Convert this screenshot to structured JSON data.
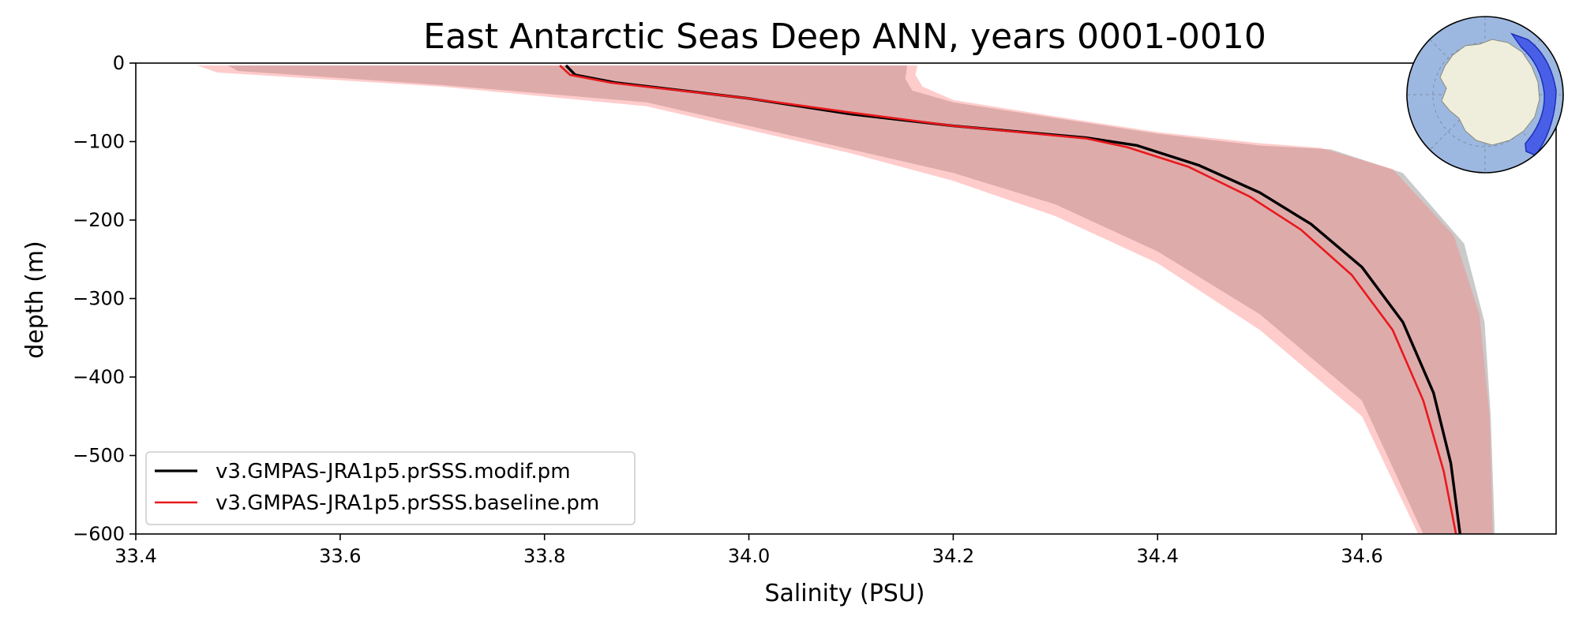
{
  "chart_data": {
    "type": "line",
    "title": "East Antarctic Seas Deep ANN, years 0001-0010",
    "xlabel": "Salinity (PSU)",
    "ylabel": "depth (m)",
    "xlim": [
      33.4,
      34.79
    ],
    "ylim": [
      -600,
      0
    ],
    "xticks": [
      33.4,
      33.6,
      33.8,
      34.0,
      34.2,
      34.4,
      34.6
    ],
    "xtick_labels": [
      "33.4",
      "33.6",
      "33.8",
      "34.0",
      "34.2",
      "34.4",
      "34.6"
    ],
    "yticks": [
      0,
      -100,
      -200,
      -300,
      -400,
      -500,
      -600
    ],
    "ytick_labels": [
      "0",
      "−100",
      "−200",
      "−300",
      "−400",
      "−500",
      "−600"
    ],
    "legend_location": "lower-left",
    "series": [
      {
        "name": "v3.GMPAS-JRA1p5.prSSS.modif.pm",
        "color": "#000000",
        "mean": [
          [
            33.821,
            -3
          ],
          [
            33.83,
            -15
          ],
          [
            33.87,
            -25
          ],
          [
            34.0,
            -45
          ],
          [
            34.1,
            -65
          ],
          [
            34.2,
            -80
          ],
          [
            34.33,
            -95
          ],
          [
            34.38,
            -105
          ],
          [
            34.44,
            -130
          ],
          [
            34.5,
            -165
          ],
          [
            34.55,
            -205
          ],
          [
            34.6,
            -260
          ],
          [
            34.64,
            -330
          ],
          [
            34.67,
            -420
          ],
          [
            34.687,
            -510
          ],
          [
            34.696,
            -600
          ]
        ],
        "lower": [
          [
            33.49,
            -3
          ],
          [
            33.5,
            -10
          ],
          [
            33.7,
            -28
          ],
          [
            33.9,
            -50
          ],
          [
            34.0,
            -80
          ],
          [
            34.1,
            -110
          ],
          [
            34.2,
            -140
          ],
          [
            34.3,
            -180
          ],
          [
            34.4,
            -240
          ],
          [
            34.5,
            -320
          ],
          [
            34.6,
            -430
          ],
          [
            34.66,
            -600
          ]
        ],
        "upper": [
          [
            34.155,
            -3
          ],
          [
            34.153,
            -20
          ],
          [
            34.16,
            -35
          ],
          [
            34.2,
            -50
          ],
          [
            34.3,
            -70
          ],
          [
            34.4,
            -90
          ],
          [
            34.5,
            -105
          ],
          [
            34.57,
            -110
          ],
          [
            34.64,
            -140
          ],
          [
            34.7,
            -230
          ],
          [
            34.72,
            -330
          ],
          [
            34.726,
            -450
          ],
          [
            34.73,
            -600
          ]
        ]
      },
      {
        "name": "v3.GMPAS-JRA1p5.prSSS.baseline.pm",
        "color": "#e8191c",
        "mean": [
          [
            33.815,
            -3
          ],
          [
            33.825,
            -15
          ],
          [
            33.865,
            -25
          ],
          [
            34.0,
            -45
          ],
          [
            34.1,
            -63
          ],
          [
            34.2,
            -80
          ],
          [
            34.33,
            -96
          ],
          [
            34.37,
            -107
          ],
          [
            34.43,
            -132
          ],
          [
            34.49,
            -170
          ],
          [
            34.54,
            -212
          ],
          [
            34.59,
            -270
          ],
          [
            34.63,
            -340
          ],
          [
            34.66,
            -430
          ],
          [
            34.68,
            -520
          ],
          [
            34.692,
            -600
          ]
        ],
        "lower": [
          [
            33.46,
            -3
          ],
          [
            33.48,
            -12
          ],
          [
            33.7,
            -30
          ],
          [
            33.9,
            -55
          ],
          [
            34.0,
            -85
          ],
          [
            34.1,
            -115
          ],
          [
            34.2,
            -150
          ],
          [
            34.3,
            -195
          ],
          [
            34.4,
            -255
          ],
          [
            34.5,
            -340
          ],
          [
            34.6,
            -450
          ],
          [
            34.655,
            -600
          ]
        ],
        "upper": [
          [
            34.165,
            -3
          ],
          [
            34.163,
            -15
          ],
          [
            34.17,
            -30
          ],
          [
            34.2,
            -47
          ],
          [
            34.3,
            -68
          ],
          [
            34.4,
            -88
          ],
          [
            34.5,
            -102
          ],
          [
            34.56,
            -108
          ],
          [
            34.63,
            -135
          ],
          [
            34.69,
            -220
          ],
          [
            34.715,
            -320
          ],
          [
            34.725,
            -450
          ],
          [
            34.728,
            -600
          ]
        ]
      }
    ]
  },
  "inset_map": {
    "ocean_color": "#9db8e0",
    "land_color": "#efeedc",
    "region_color": "#3b4fe8"
  }
}
